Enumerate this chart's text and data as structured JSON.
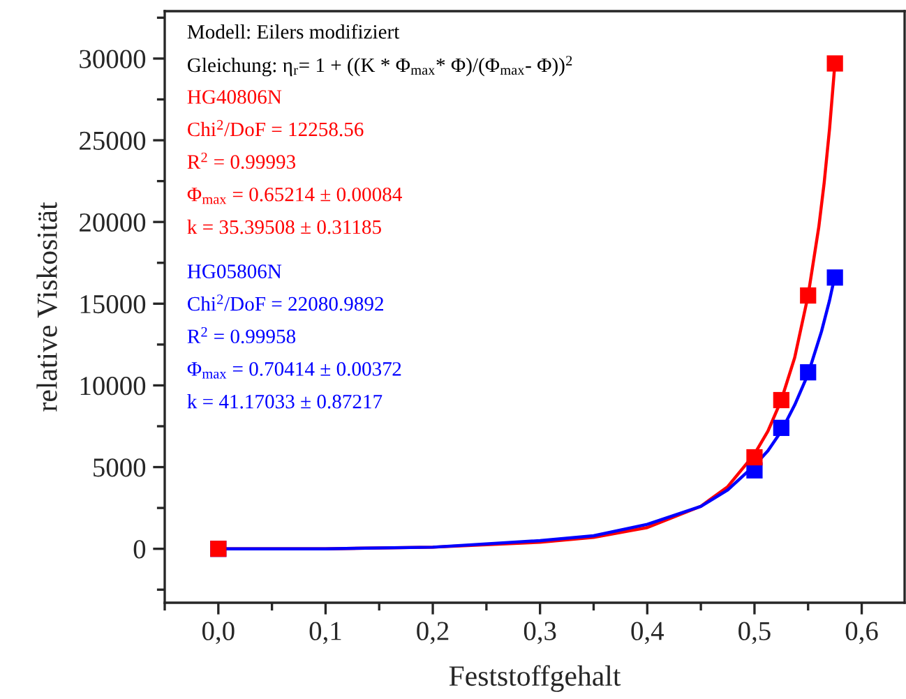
{
  "chart_data": {
    "type": "scatter",
    "xlabel": "Feststoffgehalt",
    "ylabel": "relative Viskosität",
    "xlim": [
      -0.05,
      0.64
    ],
    "ylim": [
      -3300,
      32900
    ],
    "xticks": [
      {
        "value": 0.0,
        "label": "0,0"
      },
      {
        "value": 0.1,
        "label": "0,1"
      },
      {
        "value": 0.2,
        "label": "0,2"
      },
      {
        "value": 0.3,
        "label": "0,3"
      },
      {
        "value": 0.4,
        "label": "0,4"
      },
      {
        "value": 0.5,
        "label": "0,5"
      },
      {
        "value": 0.6,
        "label": "0,6"
      }
    ],
    "yticks": [
      0,
      5000,
      10000,
      15000,
      20000,
      25000,
      30000
    ],
    "grid": false,
    "legend": false,
    "series": [
      {
        "type": "line",
        "name": "HG40806N\nChi$^{2}$/DoF = 12258.56\nR$^{2}$ = 0.99993\nΦ$_{max}$ = 0.65214 ± 0.00084\nk = 35.39508 ± 0.31185",
        "color": "#ff0000",
        "marker": "none",
        "line_style": "solid",
        "x": [
          0,
          0.1,
          0.2,
          0.3,
          0.35,
          0.4,
          0.45,
          0.475,
          0.5,
          0.5125,
          0.525,
          0.5375,
          0.55,
          0.56,
          0.565,
          0.57,
          0.575
        ],
        "values": [
          0,
          0,
          100,
          400,
          700,
          1300,
          2600,
          3800,
          5800,
          7200,
          9100,
          11700,
          15500,
          19700,
          22400,
          25700,
          29700
        ]
      },
      {
        "type": "line",
        "name": "HG05806N\nChi$^{2}$/DoF = 22080.9892\nR$^{2}$ = 0.99958\nΦ$_{max}$ = 0.70414 ± 0.00372\nk = 41.17033 ± 0.87217",
        "color": "#0000ff",
        "marker": "none",
        "line_style": "solid",
        "x": [
          0,
          0.1,
          0.2,
          0.3,
          0.35,
          0.4,
          0.45,
          0.475,
          0.5,
          0.5125,
          0.525,
          0.5375,
          0.55,
          0.5625,
          0.57,
          0.575
        ],
        "values": [
          0,
          0,
          100,
          500,
          800,
          1500,
          2600,
          3600,
          5100,
          6000,
          7200,
          8800,
          10700,
          13300,
          15200,
          16700
        ]
      },
      {
        "color": "#0000ff",
        "marker": "square",
        "x": [
          0,
          0.5,
          0.525,
          0.55,
          0.575
        ],
        "values": [
          0,
          4800,
          7400,
          10800,
          16600
        ]
      },
      {
        "color": "#ff0000",
        "marker": "square",
        "x": [
          0,
          0.5,
          0.525,
          0.55,
          0.575
        ],
        "values": [
          0,
          5600,
          9100,
          15500,
          29700
        ]
      }
    ],
    "annotations": [
      "Modell: Eilers modifiziert",
      "Gleichung: η$_{r}$= 1 + ((K * Φ$_{max}$* Φ)/(Φ$_{max}$- Φ))$^{2}$"
    ]
  }
}
